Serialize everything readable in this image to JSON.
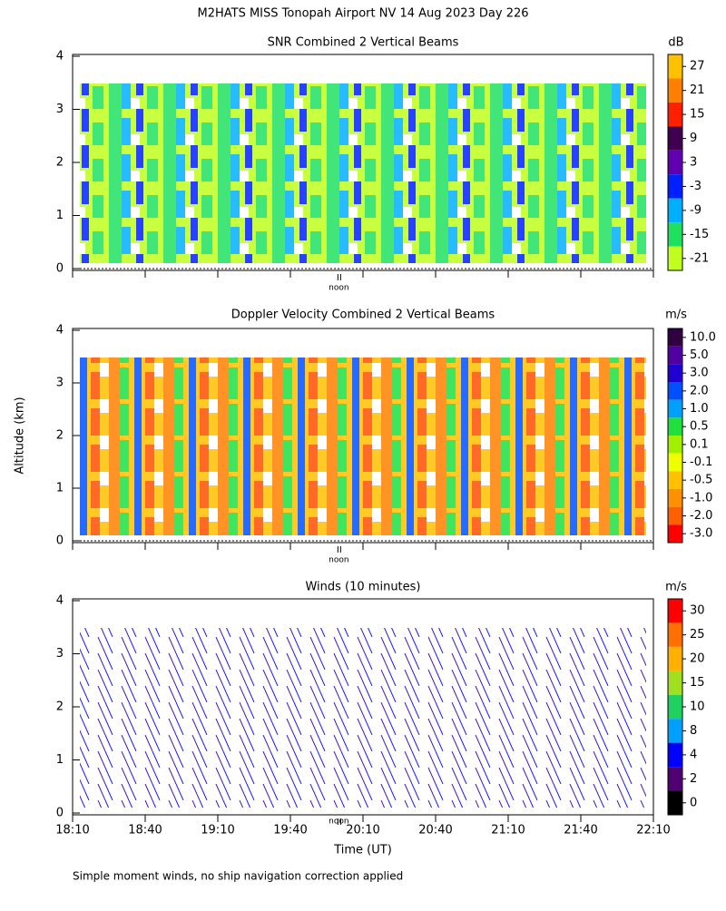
{
  "title": "M2HATS MISS Tonopah Airport NV  14 Aug 2023 Day 226",
  "y_axis_label": "Altitude (km)",
  "x_axis": {
    "label": "Time (UT)",
    "xlim": [
      1090,
      1330
    ],
    "xticks": [
      {
        "value": 1090,
        "label": "18:10"
      },
      {
        "value": 1120,
        "label": "18:40"
      },
      {
        "value": 1150,
        "label": "19:10"
      },
      {
        "value": 1180,
        "label": "19:40"
      },
      {
        "value": 1210,
        "label": "20:10"
      },
      {
        "value": 1240,
        "label": "20:40"
      },
      {
        "value": 1270,
        "label": "21:10"
      },
      {
        "value": 1300,
        "label": "21:40"
      },
      {
        "value": 1330,
        "label": "22:10"
      }
    ],
    "noon": {
      "value": 1200,
      "label": "noon"
    }
  },
  "footnote": "Simple moment winds, no ship navigation correction applied",
  "chart_data": [
    {
      "type": "heatmap",
      "title": "SNR Combined 2 Vertical Beams",
      "ylim": [
        0,
        4
      ],
      "yticks": [
        0,
        1,
        2,
        3,
        4
      ],
      "colorbar": {
        "unit": "dB",
        "levels": [
          {
            "value": 27,
            "color": "#ffc000"
          },
          {
            "value": 21,
            "color": "#ff8000"
          },
          {
            "value": 15,
            "color": "#ff2000"
          },
          {
            "value": 9,
            "color": "#400050"
          },
          {
            "value": 3,
            "color": "#6000b0"
          },
          {
            "value": -3,
            "color": "#0020ff"
          },
          {
            "value": -9,
            "color": "#00b0ff"
          },
          {
            "value": -15,
            "color": "#20e060"
          },
          {
            "value": -21,
            "color": "#c0ff20"
          }
        ]
      }
    },
    {
      "type": "heatmap",
      "title": "Doppler Velocity Combined 2 Vertical Beams",
      "ylim": [
        0,
        4
      ],
      "yticks": [
        0,
        1,
        2,
        3,
        4
      ],
      "colorbar": {
        "unit": "m/s",
        "levels": [
          {
            "value": {
              "value": 10,
              "label": "10.0"
            },
            "color": "#300040"
          },
          {
            "value": {
              "value": 5,
              "label": "5.0"
            },
            "color": "#5000a0"
          },
          {
            "value": {
              "value": 3,
              "label": "3.0"
            },
            "color": "#2000d0"
          },
          {
            "value": {
              "value": 2,
              "label": "2.0"
            },
            "color": "#0050ff"
          },
          {
            "value": {
              "value": 1,
              "label": "1.0"
            },
            "color": "#00a0ff"
          },
          {
            "value": 0.5,
            "color": "#20e040"
          },
          {
            "value": 0.1,
            "color": "#a0f000"
          },
          {
            "value": -0.1,
            "color": "#f0ff00"
          },
          {
            "value": -0.5,
            "color": "#ffc000"
          },
          {
            "value": {
              "value": -1,
              "label": "-1.0"
            },
            "color": "#ff9000"
          },
          {
            "value": {
              "value": -2,
              "label": "-2.0"
            },
            "color": "#ff6000"
          },
          {
            "value": {
              "value": -3,
              "label": "-3.0"
            },
            "color": "#ff0000"
          }
        ]
      }
    },
    {
      "type": "barbs",
      "title": "Winds (10 minutes)",
      "ylim": [
        0,
        4
      ],
      "yticks": [
        0,
        1,
        2,
        3,
        4
      ],
      "colorbar": {
        "unit": "m/s",
        "levels": [
          {
            "value": 30,
            "color": "#ff0000"
          },
          {
            "value": 25,
            "color": "#ff7000"
          },
          {
            "value": 20,
            "color": "#ffb000"
          },
          {
            "value": 15,
            "color": "#a0e020"
          },
          {
            "value": 10,
            "color": "#20d060"
          },
          {
            "value": 8,
            "color": "#00a0ff"
          },
          {
            "value": 4,
            "color": "#0000ff"
          },
          {
            "value": 2,
            "color": "#500070"
          },
          {
            "value": 0,
            "color": "#000000"
          }
        ]
      }
    }
  ]
}
